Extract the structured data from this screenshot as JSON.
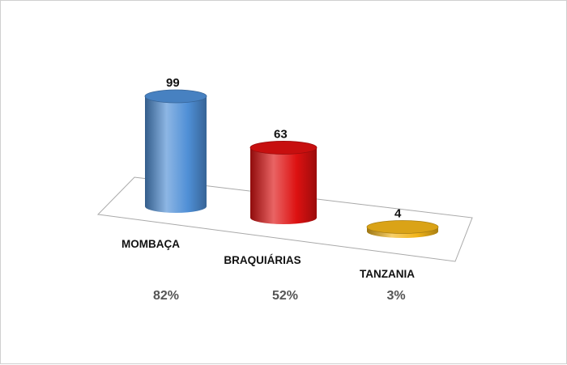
{
  "chart_data": {
    "type": "bar",
    "style": "3d-cylinder",
    "categories": [
      "MOMBAÇA",
      "BRAQUIÁRIAS",
      "TANZANIA"
    ],
    "values": [
      99,
      63,
      4
    ],
    "percentages": [
      "82%",
      "52%",
      "3%"
    ],
    "colors": [
      "#4f8fd6",
      "#dd1111",
      "#f2b51a"
    ],
    "title": "",
    "xlabel": "",
    "ylabel": "",
    "ylim": [
      0,
      99
    ],
    "grid": false,
    "legend": "none"
  }
}
